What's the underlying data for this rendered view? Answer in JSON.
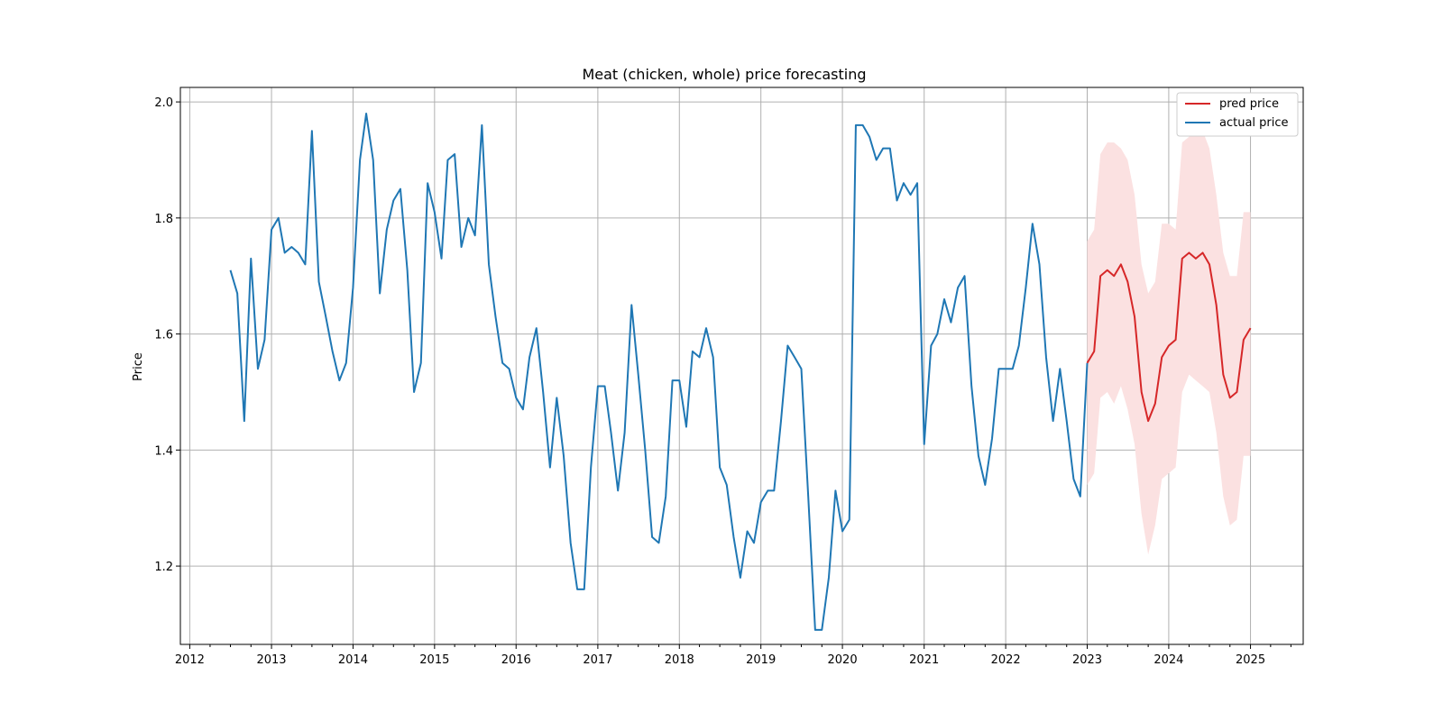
{
  "chart_data": {
    "type": "line",
    "title": "Meat (chicken, whole) price forecasting",
    "xlabel": "",
    "ylabel": "Price",
    "xlim": [
      "2011-11-20",
      "2025-08-25"
    ],
    "ylim": [
      1.065,
      2.025
    ],
    "x_ticks": [
      "2012",
      "2013",
      "2014",
      "2015",
      "2016",
      "2017",
      "2018",
      "2019",
      "2020",
      "2021",
      "2022",
      "2023",
      "2024",
      "2025"
    ],
    "y_ticks": [
      1.2,
      1.4,
      1.6,
      1.8,
      2.0
    ],
    "grid": true,
    "legend": {
      "placement": "top-right",
      "entries": [
        "pred price",
        "actual price"
      ]
    },
    "colors": {
      "actual": "#1f77b4",
      "pred": "#d62728",
      "band": "#fbe1e1"
    },
    "series": [
      {
        "name": "actual price",
        "x": [
          "2012-07",
          "2012-08",
          "2012-09",
          "2012-10",
          "2012-11",
          "2012-12",
          "2013-01",
          "2013-02",
          "2013-03",
          "2013-04",
          "2013-05",
          "2013-06",
          "2013-07",
          "2013-08",
          "2013-09",
          "2013-10",
          "2013-11",
          "2013-12",
          "2014-01",
          "2014-02",
          "2014-03",
          "2014-04",
          "2014-05",
          "2014-06",
          "2014-07",
          "2014-08",
          "2014-09",
          "2014-10",
          "2014-11",
          "2014-12",
          "2015-01",
          "2015-02",
          "2015-03",
          "2015-04",
          "2015-05",
          "2015-06",
          "2015-07",
          "2015-08",
          "2015-09",
          "2015-10",
          "2015-11",
          "2015-12",
          "2016-01",
          "2016-02",
          "2016-03",
          "2016-04",
          "2016-05",
          "2016-06",
          "2016-07",
          "2016-08",
          "2016-09",
          "2016-10",
          "2016-11",
          "2016-12",
          "2017-01",
          "2017-02",
          "2017-03",
          "2017-04",
          "2017-05",
          "2017-06",
          "2017-07",
          "2017-08",
          "2017-09",
          "2017-10",
          "2017-11",
          "2017-12",
          "2018-01",
          "2018-02",
          "2018-03",
          "2018-04",
          "2018-05",
          "2018-06",
          "2018-07",
          "2018-08",
          "2018-09",
          "2018-10",
          "2018-11",
          "2018-12",
          "2019-01",
          "2019-02",
          "2019-03",
          "2019-04",
          "2019-05",
          "2019-06",
          "2019-07",
          "2019-08",
          "2019-09",
          "2019-10",
          "2019-11",
          "2019-12",
          "2020-01",
          "2020-02",
          "2020-03",
          "2020-04",
          "2020-05",
          "2020-06",
          "2020-07",
          "2020-08",
          "2020-09",
          "2020-10",
          "2020-11",
          "2020-12",
          "2021-01",
          "2021-02",
          "2021-03",
          "2021-04",
          "2021-05",
          "2021-06",
          "2021-07",
          "2021-08",
          "2021-09",
          "2021-10",
          "2021-11",
          "2021-12",
          "2022-01",
          "2022-02",
          "2022-03",
          "2022-04",
          "2022-05",
          "2022-06",
          "2022-07",
          "2022-08",
          "2022-09",
          "2022-10",
          "2022-11",
          "2022-12",
          "2023-01"
        ],
        "values": [
          1.71,
          1.67,
          1.45,
          1.73,
          1.54,
          1.59,
          1.78,
          1.8,
          1.74,
          1.75,
          1.74,
          1.72,
          1.95,
          1.69,
          1.63,
          1.57,
          1.52,
          1.55,
          1.68,
          1.9,
          1.98,
          1.9,
          1.67,
          1.78,
          1.83,
          1.85,
          1.71,
          1.5,
          1.55,
          1.86,
          1.81,
          1.73,
          1.9,
          1.91,
          1.75,
          1.8,
          1.77,
          1.96,
          1.72,
          1.63,
          1.55,
          1.54,
          1.49,
          1.47,
          1.56,
          1.61,
          1.5,
          1.37,
          1.49,
          1.39,
          1.24,
          1.16,
          1.16,
          1.37,
          1.51,
          1.51,
          1.43,
          1.33,
          1.43,
          1.65,
          1.53,
          1.4,
          1.25,
          1.24,
          1.32,
          1.52,
          1.52,
          1.44,
          1.57,
          1.56,
          1.61,
          1.56,
          1.37,
          1.34,
          1.25,
          1.18,
          1.26,
          1.24,
          1.31,
          1.33,
          1.33,
          1.45,
          1.58,
          1.56,
          1.54,
          1.32,
          1.09,
          1.09,
          1.18,
          1.33,
          1.26,
          1.28,
          1.96,
          1.96,
          1.94,
          1.9,
          1.92,
          1.92,
          1.83,
          1.86,
          1.84,
          1.86,
          1.41,
          1.58,
          1.6,
          1.66,
          1.62,
          1.68,
          1.7,
          1.51,
          1.39,
          1.34,
          1.42,
          1.54,
          1.54,
          1.54,
          1.58,
          1.68,
          1.79,
          1.72,
          1.56,
          1.45,
          1.54,
          1.45,
          1.35,
          1.32,
          1.55
        ]
      },
      {
        "name": "pred price",
        "x": [
          "2023-01",
          "2023-02",
          "2023-03",
          "2023-04",
          "2023-05",
          "2023-06",
          "2023-07",
          "2023-08",
          "2023-09",
          "2023-10",
          "2023-11",
          "2023-12",
          "2024-01",
          "2024-02",
          "2024-03",
          "2024-04",
          "2024-05",
          "2024-06",
          "2024-07",
          "2024-08",
          "2024-09",
          "2024-10",
          "2024-11",
          "2024-12",
          "2025-01"
        ],
        "values": [
          1.55,
          1.57,
          1.7,
          1.71,
          1.7,
          1.72,
          1.69,
          1.63,
          1.5,
          1.45,
          1.48,
          1.56,
          1.58,
          1.59,
          1.73,
          1.74,
          1.73,
          1.74,
          1.72,
          1.65,
          1.53,
          1.49,
          1.5,
          1.59,
          1.61
        ],
        "lower": [
          1.34,
          1.36,
          1.49,
          1.5,
          1.48,
          1.51,
          1.47,
          1.41,
          1.29,
          1.22,
          1.27,
          1.35,
          1.36,
          1.37,
          1.5,
          1.53,
          1.52,
          1.51,
          1.5,
          1.43,
          1.32,
          1.27,
          1.28,
          1.39,
          1.39
        ],
        "upper": [
          1.76,
          1.78,
          1.91,
          1.93,
          1.93,
          1.92,
          1.9,
          1.84,
          1.72,
          1.67,
          1.69,
          1.79,
          1.79,
          1.78,
          1.93,
          1.94,
          1.95,
          1.95,
          1.92,
          1.84,
          1.74,
          1.7,
          1.7,
          1.81,
          1.81
        ]
      }
    ]
  }
}
